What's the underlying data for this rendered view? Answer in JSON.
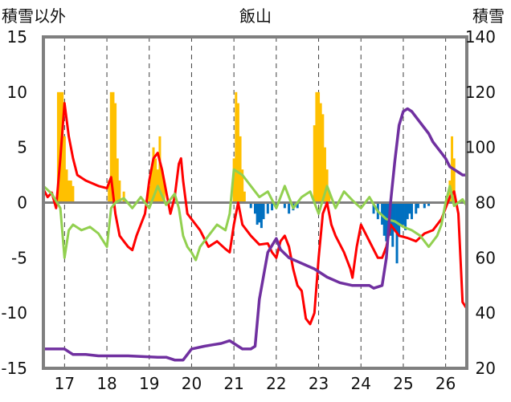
{
  "chart_data": {
    "type": "line",
    "title": "飯山",
    "ylabel_left": "積雪以外",
    "ylabel_right": "積雪",
    "x_ticks": [
      "17",
      "18",
      "19",
      "20",
      "21",
      "22",
      "23",
      "24",
      "25",
      "26"
    ],
    "xlim": [
      16.5,
      26.5
    ],
    "ylim_left": [
      -15,
      15
    ],
    "ylim_right": [
      20,
      140
    ],
    "yticks_left": [
      -15,
      -10,
      -5,
      0,
      5,
      10,
      15
    ],
    "yticks_right": [
      20,
      40,
      60,
      80,
      100,
      120,
      140
    ],
    "grid": "vertical dashed at each day",
    "colors": {
      "temperature": "#ff0000",
      "humidity_like": "#92d050",
      "snow_depth": "#7030a0",
      "snowfall_positive": "#ffc000",
      "snowfall_negative": "#0070c0",
      "axis": "#7f7f7f"
    },
    "series": [
      {
        "axis": "left",
        "color": "#ff0000",
        "points": [
          [
            16.5,
            1.2
          ],
          [
            16.6,
            0.5
          ],
          [
            16.7,
            0.9
          ],
          [
            16.8,
            -0.5
          ],
          [
            16.9,
            4
          ],
          [
            17.0,
            9
          ],
          [
            17.1,
            6
          ],
          [
            17.2,
            4
          ],
          [
            17.3,
            2.5
          ],
          [
            17.5,
            2
          ],
          [
            17.8,
            1.5
          ],
          [
            18.0,
            1.3
          ],
          [
            18.1,
            2.3
          ],
          [
            18.2,
            -1
          ],
          [
            18.3,
            -3
          ],
          [
            18.4,
            -3.5
          ],
          [
            18.5,
            -4
          ],
          [
            18.6,
            -4.3
          ],
          [
            18.7,
            -3
          ],
          [
            18.8,
            -2
          ],
          [
            18.9,
            -1
          ],
          [
            19.0,
            2
          ],
          [
            19.1,
            4
          ],
          [
            19.2,
            4.5
          ],
          [
            19.3,
            3
          ],
          [
            19.4,
            1
          ],
          [
            19.5,
            -1
          ],
          [
            19.6,
            0.5
          ],
          [
            19.7,
            3.5
          ],
          [
            19.75,
            4
          ],
          [
            19.8,
            2
          ],
          [
            19.9,
            -1
          ],
          [
            20.0,
            -1.5
          ],
          [
            20.2,
            -2.5
          ],
          [
            20.4,
            -4
          ],
          [
            20.6,
            -3.5
          ],
          [
            20.8,
            -4.2
          ],
          [
            20.9,
            -4.5
          ],
          [
            21.0,
            -2
          ],
          [
            21.1,
            0
          ],
          [
            21.2,
            -2
          ],
          [
            21.4,
            -3
          ],
          [
            21.6,
            -3.8
          ],
          [
            21.8,
            -3.7
          ],
          [
            21.9,
            -4.5
          ],
          [
            22.0,
            -5
          ],
          [
            22.1,
            -3.5
          ],
          [
            22.2,
            -3
          ],
          [
            22.3,
            -4
          ],
          [
            22.4,
            -6
          ],
          [
            22.5,
            -7.5
          ],
          [
            22.6,
            -8
          ],
          [
            22.7,
            -10.5
          ],
          [
            22.8,
            -11
          ],
          [
            22.9,
            -10
          ],
          [
            23.0,
            -5
          ],
          [
            23.1,
            -1
          ],
          [
            23.2,
            0
          ],
          [
            23.3,
            -2
          ],
          [
            23.4,
            -3
          ],
          [
            23.6,
            -4.5
          ],
          [
            23.75,
            -6
          ],
          [
            23.8,
            -6.8
          ],
          [
            23.9,
            -4
          ],
          [
            24.0,
            -2
          ],
          [
            24.2,
            -3.5
          ],
          [
            24.4,
            -5
          ],
          [
            24.5,
            -5
          ],
          [
            24.6,
            -4
          ],
          [
            24.7,
            -2
          ],
          [
            24.8,
            -2.5
          ],
          [
            24.9,
            -3
          ],
          [
            25.1,
            -3.2
          ],
          [
            25.3,
            -3.5
          ],
          [
            25.5,
            -2.8
          ],
          [
            25.7,
            -2.5
          ],
          [
            25.9,
            -1.5
          ],
          [
            26.0,
            -0.5
          ],
          [
            26.1,
            0.5
          ],
          [
            26.2,
            1
          ],
          [
            26.3,
            -1
          ],
          [
            26.35,
            -5
          ],
          [
            26.4,
            -9
          ],
          [
            26.5,
            -9.6
          ]
        ]
      },
      {
        "axis": "left",
        "color": "#92d050",
        "points": [
          [
            16.5,
            1.5
          ],
          [
            16.7,
            0.8
          ],
          [
            16.9,
            -0.5
          ],
          [
            17.0,
            -5
          ],
          [
            17.1,
            -2.5
          ],
          [
            17.2,
            -2
          ],
          [
            17.4,
            -2.5
          ],
          [
            17.6,
            -2.2
          ],
          [
            17.8,
            -2.8
          ],
          [
            18.0,
            -4
          ],
          [
            18.1,
            -0.5
          ],
          [
            18.2,
            0
          ],
          [
            18.4,
            0.4
          ],
          [
            18.6,
            -0.5
          ],
          [
            18.8,
            0.5
          ],
          [
            19.0,
            -0.5
          ],
          [
            19.2,
            1.5
          ],
          [
            19.4,
            -0.2
          ],
          [
            19.6,
            0.8
          ],
          [
            19.7,
            -0.5
          ],
          [
            19.8,
            -3
          ],
          [
            19.9,
            -4
          ],
          [
            20.0,
            -4.5
          ],
          [
            20.1,
            -5.2
          ],
          [
            20.2,
            -4
          ],
          [
            20.4,
            -3
          ],
          [
            20.6,
            -2
          ],
          [
            20.8,
            -2.5
          ],
          [
            20.9,
            -1
          ],
          [
            21.0,
            3
          ],
          [
            21.2,
            2.5
          ],
          [
            21.4,
            1.5
          ],
          [
            21.6,
            0.5
          ],
          [
            21.8,
            1
          ],
          [
            22.0,
            -0.5
          ],
          [
            22.2,
            1.5
          ],
          [
            22.4,
            -0.5
          ],
          [
            22.6,
            0.5
          ],
          [
            22.8,
            1
          ],
          [
            23.0,
            -1
          ],
          [
            23.2,
            1.5
          ],
          [
            23.4,
            -0.5
          ],
          [
            23.6,
            1
          ],
          [
            23.8,
            0.2
          ],
          [
            24.0,
            -0.5
          ],
          [
            24.2,
            0.5
          ],
          [
            24.4,
            -0.8
          ],
          [
            24.6,
            -1.5
          ],
          [
            24.8,
            -1.7
          ],
          [
            25.0,
            -2.2
          ],
          [
            25.2,
            -2.5
          ],
          [
            25.4,
            -3
          ],
          [
            25.6,
            -4
          ],
          [
            25.8,
            -3
          ],
          [
            25.9,
            -2
          ],
          [
            26.0,
            0
          ],
          [
            26.1,
            1.5
          ],
          [
            26.2,
            -0.3
          ],
          [
            26.4,
            0.3
          ],
          [
            26.5,
            -0.3
          ]
        ]
      },
      {
        "axis": "right",
        "color": "#7030a0",
        "points": [
          [
            16.5,
            27
          ],
          [
            17.0,
            27
          ],
          [
            17.1,
            26
          ],
          [
            17.2,
            25
          ],
          [
            17.5,
            25
          ],
          [
            17.8,
            24.5
          ],
          [
            18.5,
            24.5
          ],
          [
            19.2,
            24
          ],
          [
            19.4,
            24
          ],
          [
            19.6,
            23
          ],
          [
            19.8,
            23
          ],
          [
            20.0,
            27
          ],
          [
            20.3,
            28
          ],
          [
            20.5,
            28.5
          ],
          [
            20.7,
            29
          ],
          [
            20.9,
            30
          ],
          [
            21.2,
            27
          ],
          [
            21.4,
            27
          ],
          [
            21.5,
            28
          ],
          [
            21.6,
            45
          ],
          [
            21.8,
            62
          ],
          [
            22.0,
            67
          ],
          [
            22.1,
            63
          ],
          [
            22.3,
            60
          ],
          [
            22.6,
            58
          ],
          [
            22.9,
            56
          ],
          [
            23.2,
            53
          ],
          [
            23.5,
            51
          ],
          [
            23.8,
            50
          ],
          [
            24.0,
            50
          ],
          [
            24.2,
            50
          ],
          [
            24.3,
            49
          ],
          [
            24.5,
            50
          ],
          [
            24.6,
            60
          ],
          [
            24.7,
            80
          ],
          [
            24.8,
            95
          ],
          [
            24.9,
            108
          ],
          [
            25.0,
            113
          ],
          [
            25.1,
            114
          ],
          [
            25.2,
            113
          ],
          [
            25.4,
            109
          ],
          [
            25.6,
            105
          ],
          [
            25.7,
            102
          ],
          [
            25.9,
            98
          ],
          [
            26.0,
            96
          ],
          [
            26.1,
            93
          ],
          [
            26.2,
            92
          ],
          [
            26.3,
            91
          ],
          [
            26.4,
            90
          ],
          [
            26.5,
            90
          ]
        ]
      }
    ],
    "bars": {
      "axis": "left",
      "points": [
        [
          16.85,
          10
        ],
        [
          16.9,
          10
        ],
        [
          16.95,
          10
        ],
        [
          17.0,
          6
        ],
        [
          17.05,
          3
        ],
        [
          17.1,
          2
        ],
        [
          17.15,
          2
        ],
        [
          17.2,
          1.5
        ],
        [
          18.05,
          2
        ],
        [
          18.1,
          10
        ],
        [
          18.15,
          10
        ],
        [
          18.2,
          9
        ],
        [
          18.25,
          4
        ],
        [
          18.3,
          2
        ],
        [
          18.4,
          1
        ],
        [
          19.0,
          1.5
        ],
        [
          19.05,
          3
        ],
        [
          19.1,
          5
        ],
        [
          19.15,
          4
        ],
        [
          19.2,
          3
        ],
        [
          19.25,
          6
        ],
        [
          19.3,
          3
        ],
        [
          19.35,
          2
        ],
        [
          21.0,
          4
        ],
        [
          21.05,
          10
        ],
        [
          21.1,
          9
        ],
        [
          21.15,
          6
        ],
        [
          21.2,
          3
        ],
        [
          21.25,
          1
        ],
        [
          21.4,
          -0.5
        ],
        [
          21.5,
          -1
        ],
        [
          21.55,
          -2
        ],
        [
          21.6,
          -1.8
        ],
        [
          21.65,
          -2.3
        ],
        [
          21.7,
          -1.5
        ],
        [
          21.8,
          -1
        ],
        [
          21.9,
          -0.7
        ],
        [
          22.0,
          -0.3
        ],
        [
          22.2,
          -0.5
        ],
        [
          22.3,
          -1
        ],
        [
          22.4,
          -0.7
        ],
        [
          22.5,
          -0.5
        ],
        [
          22.9,
          7
        ],
        [
          22.95,
          10
        ],
        [
          23.0,
          10
        ],
        [
          23.05,
          9
        ],
        [
          23.1,
          8
        ],
        [
          23.15,
          5
        ],
        [
          23.2,
          3
        ],
        [
          23.25,
          1
        ],
        [
          24.3,
          -1
        ],
        [
          24.4,
          -1.5
        ],
        [
          24.5,
          -2
        ],
        [
          24.55,
          -3
        ],
        [
          24.6,
          -3.5
        ],
        [
          24.65,
          -2.5
        ],
        [
          24.7,
          -3
        ],
        [
          24.75,
          -4
        ],
        [
          24.8,
          -2.5
        ],
        [
          24.85,
          -5.5
        ],
        [
          24.9,
          -3
        ],
        [
          24.95,
          -2
        ],
        [
          25.0,
          -2
        ],
        [
          25.05,
          -2.5
        ],
        [
          25.1,
          -1.5
        ],
        [
          25.15,
          -1
        ],
        [
          25.2,
          -1.5
        ],
        [
          25.3,
          -1
        ],
        [
          25.35,
          -0.5
        ],
        [
          25.5,
          -0.5
        ],
        [
          25.6,
          -0.3
        ],
        [
          26.1,
          2
        ],
        [
          26.15,
          6
        ],
        [
          26.2,
          4
        ]
      ]
    }
  }
}
